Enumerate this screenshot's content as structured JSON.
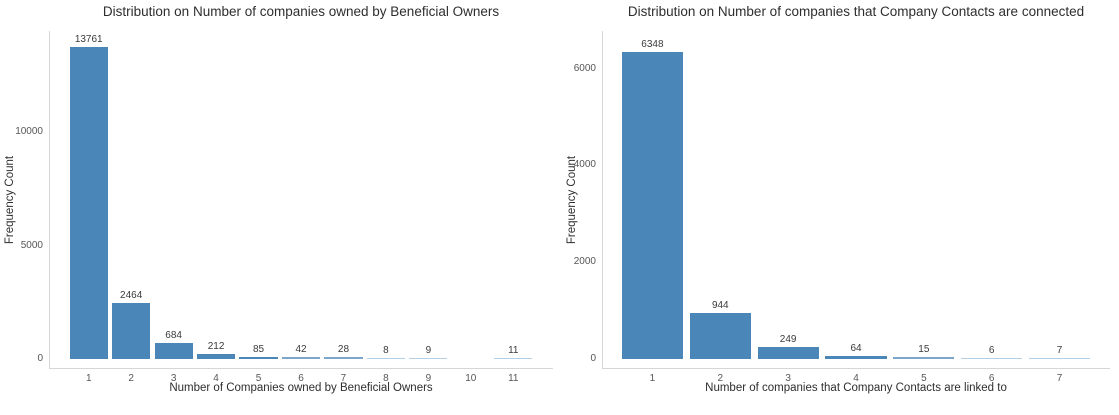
{
  "figure": {
    "background_color": "#ffffff",
    "bar_color": "#4a86b8",
    "bar_color_small": "#7aa6cc",
    "bar_color_tiny": "#b5d0e5",
    "axis_line_color": "#d6d6d6"
  },
  "chart_data": [
    {
      "type": "bar",
      "title": "Distribution on Number of companies owned by Beneficial Owners",
      "xlabel": "Number of Companies owned by Beneficial Owners",
      "ylabel": "Frequency Count",
      "categories": [
        "1",
        "2",
        "3",
        "4",
        "5",
        "6",
        "7",
        "8",
        "9",
        "10",
        "11"
      ],
      "values": [
        13761,
        2464,
        684,
        212,
        85,
        42,
        28,
        8,
        9,
        null,
        11
      ],
      "data_labels": [
        "13761",
        "2464",
        "684",
        "212",
        "85",
        "42",
        "28",
        "8",
        "9",
        null,
        "11"
      ],
      "yticks": [
        0,
        5000,
        10000
      ],
      "ytick_labels": [
        "0",
        "5000",
        "10000"
      ],
      "ylim": [
        0,
        14460
      ],
      "grid": false,
      "legend": null,
      "data_labels_shown": true
    },
    {
      "type": "bar",
      "title": "Distribution on Number of companies that Company Contacts are connected",
      "xlabel": "Number of companies that Company Contacts are linked to",
      "ylabel": "Frequency Count",
      "categories": [
        "1",
        "2",
        "3",
        "4",
        "5",
        "6",
        "7"
      ],
      "values": [
        6348,
        944,
        249,
        64,
        15,
        6,
        7
      ],
      "data_labels": [
        "6348",
        "944",
        "249",
        "64",
        "15",
        "6",
        "7"
      ],
      "yticks": [
        0,
        2000,
        4000,
        6000
      ],
      "ytick_labels": [
        "0",
        "2000",
        "4000",
        "6000"
      ],
      "ylim": [
        0,
        6780
      ],
      "grid": false,
      "legend": null,
      "data_labels_shown": true
    }
  ]
}
